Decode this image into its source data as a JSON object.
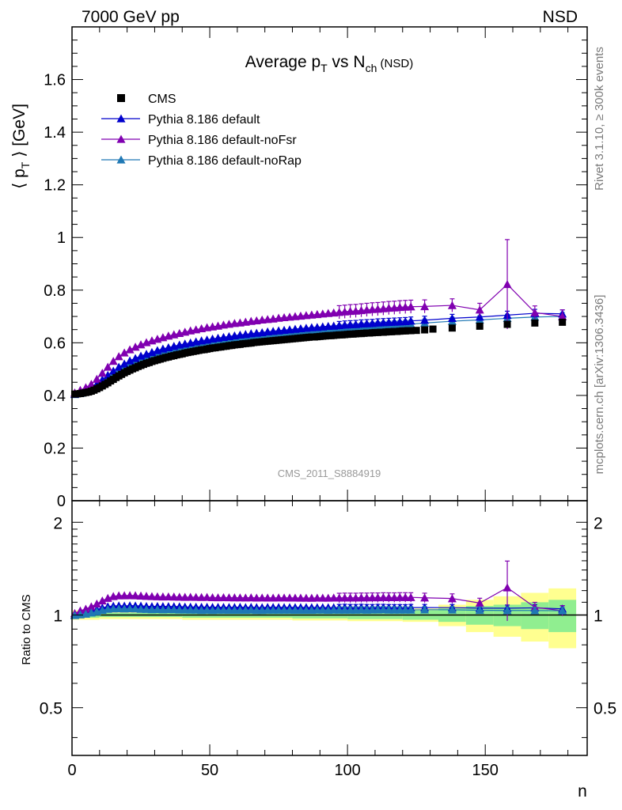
{
  "header": {
    "energy_label": "7000 GeV pp",
    "process_label": "NSD"
  },
  "side_text": {
    "rivet": "Rivet 3.1.10, ≥ 300k events",
    "mcplots": "mcplots.cern.ch [arXiv:1306.3436]"
  },
  "chart_data": [
    {
      "type": "scatter",
      "panel": "main",
      "title_parts": {
        "main": "Average p",
        "sub1": "T",
        "mid": " vs N",
        "sub2": "ch",
        "tail": " (NSD)"
      },
      "ylabel_parts": {
        "open": "⟨ p",
        "sub": "T",
        "close": " ⟩ [GeV]"
      },
      "watermark": "CMS_2011_S8884919",
      "xlim": [
        0,
        187
      ],
      "ylim": [
        0,
        1.8
      ],
      "yticks": [
        0,
        0.2,
        0.4,
        0.6,
        0.8,
        1.0,
        1.2,
        1.4,
        1.6
      ],
      "ytick_labels": [
        "0",
        "0.2",
        "0.4",
        "0.6",
        "0.8",
        "1",
        "1.2",
        "1.4",
        "1.6"
      ],
      "legend_position": "top-left",
      "series": [
        {
          "name": "CMS",
          "color": "#000000",
          "marker": "square",
          "x": [
            1,
            2,
            3,
            4,
            5,
            6,
            7,
            8,
            9,
            10,
            11,
            12,
            13,
            14,
            15,
            16,
            17,
            18,
            19,
            20,
            21,
            22,
            23,
            24,
            25,
            26,
            27,
            28,
            29,
            30,
            31,
            32,
            33,
            34,
            35,
            36,
            37,
            38,
            39,
            40,
            41,
            42,
            43,
            44,
            45,
            46,
            47,
            48,
            49,
            50,
            51,
            52,
            53,
            54,
            55,
            56,
            57,
            58,
            59,
            60,
            61,
            62,
            63,
            64,
            65,
            66,
            67,
            68,
            69,
            70,
            71,
            72,
            73,
            74,
            75,
            76,
            77,
            78,
            79,
            80,
            81,
            82,
            83,
            84,
            85,
            86,
            87,
            88,
            89,
            90,
            91,
            92,
            93,
            94,
            95,
            96,
            97,
            98,
            99,
            100,
            101,
            102,
            103,
            104,
            105,
            106,
            107,
            108,
            109,
            110,
            111,
            112,
            113,
            114,
            115,
            116,
            117,
            118,
            119,
            120,
            121,
            122,
            123,
            125,
            128,
            131,
            138,
            148,
            158,
            168,
            178
          ],
          "y": [
            0.405,
            0.406,
            0.407,
            0.409,
            0.411,
            0.413,
            0.416,
            0.42,
            0.425,
            0.43,
            0.436,
            0.442,
            0.448,
            0.455,
            0.461,
            0.468,
            0.474,
            0.48,
            0.486,
            0.491,
            0.496,
            0.501,
            0.505,
            0.51,
            0.514,
            0.518,
            0.522,
            0.525,
            0.529,
            0.532,
            0.535,
            0.538,
            0.541,
            0.544,
            0.546,
            0.549,
            0.551,
            0.554,
            0.556,
            0.558,
            0.561,
            0.563,
            0.565,
            0.567,
            0.569,
            0.571,
            0.573,
            0.574,
            0.576,
            0.578,
            0.58,
            0.581,
            0.583,
            0.584,
            0.586,
            0.587,
            0.589,
            0.59,
            0.592,
            0.593,
            0.594,
            0.596,
            0.597,
            0.598,
            0.599,
            0.601,
            0.602,
            0.603,
            0.604,
            0.605,
            0.606,
            0.607,
            0.608,
            0.609,
            0.61,
            0.611,
            0.612,
            0.613,
            0.614,
            0.615,
            0.616,
            0.617,
            0.618,
            0.619,
            0.62,
            0.621,
            0.622,
            0.622,
            0.623,
            0.624,
            0.625,
            0.626,
            0.627,
            0.627,
            0.628,
            0.629,
            0.63,
            0.63,
            0.631,
            0.632,
            0.633,
            0.633,
            0.634,
            0.635,
            0.635,
            0.636,
            0.637,
            0.637,
            0.638,
            0.639,
            0.639,
            0.64,
            0.64,
            0.641,
            0.642,
            0.642,
            0.643,
            0.643,
            0.644,
            0.645,
            0.645,
            0.646,
            0.646,
            0.647,
            0.649,
            0.652,
            0.656,
            0.663,
            0.67,
            0.675,
            0.678
          ]
        },
        {
          "name": "Pythia 8.186 default",
          "color": "#0000cc",
          "marker": "triangle",
          "x": [
            1,
            3,
            5,
            7,
            9,
            11,
            13,
            15,
            17,
            19,
            21,
            23,
            25,
            27,
            29,
            31,
            33,
            35,
            37,
            39,
            41,
            43,
            45,
            47,
            49,
            51,
            53,
            55,
            57,
            59,
            61,
            63,
            65,
            67,
            69,
            71,
            73,
            75,
            77,
            79,
            81,
            83,
            85,
            87,
            89,
            91,
            93,
            95,
            97,
            99,
            101,
            103,
            105,
            107,
            109,
            111,
            113,
            115,
            117,
            119,
            121,
            123,
            128,
            138,
            148,
            158,
            168,
            178
          ],
          "y": [
            0.405,
            0.41,
            0.418,
            0.428,
            0.443,
            0.46,
            0.477,
            0.493,
            0.508,
            0.52,
            0.532,
            0.541,
            0.55,
            0.557,
            0.564,
            0.571,
            0.577,
            0.582,
            0.587,
            0.592,
            0.596,
            0.6,
            0.604,
            0.608,
            0.611,
            0.615,
            0.618,
            0.621,
            0.624,
            0.627,
            0.63,
            0.632,
            0.635,
            0.637,
            0.639,
            0.642,
            0.644,
            0.646,
            0.648,
            0.65,
            0.652,
            0.654,
            0.656,
            0.658,
            0.659,
            0.661,
            0.663,
            0.664,
            0.666,
            0.668,
            0.669,
            0.67,
            0.672,
            0.673,
            0.674,
            0.676,
            0.677,
            0.678,
            0.679,
            0.68,
            0.681,
            0.683,
            0.686,
            0.693,
            0.698,
            0.705,
            0.712,
            0.71
          ]
        },
        {
          "name": "Pythia 8.186 default-noFsr",
          "color": "#8000b0",
          "marker": "triangle",
          "x": [
            1,
            3,
            5,
            7,
            9,
            11,
            13,
            15,
            17,
            19,
            21,
            23,
            25,
            27,
            29,
            31,
            33,
            35,
            37,
            39,
            41,
            43,
            45,
            47,
            49,
            51,
            53,
            55,
            57,
            59,
            61,
            63,
            65,
            67,
            69,
            71,
            73,
            75,
            77,
            79,
            81,
            83,
            85,
            87,
            89,
            91,
            93,
            95,
            97,
            99,
            101,
            103,
            105,
            107,
            109,
            111,
            113,
            115,
            117,
            119,
            121,
            123,
            128,
            138,
            148,
            158,
            168,
            178
          ],
          "y": [
            0.41,
            0.42,
            0.43,
            0.443,
            0.462,
            0.485,
            0.508,
            0.53,
            0.548,
            0.562,
            0.574,
            0.584,
            0.593,
            0.601,
            0.608,
            0.614,
            0.62,
            0.626,
            0.631,
            0.636,
            0.641,
            0.646,
            0.65,
            0.654,
            0.658,
            0.661,
            0.664,
            0.668,
            0.671,
            0.674,
            0.676,
            0.679,
            0.682,
            0.684,
            0.687,
            0.689,
            0.691,
            0.694,
            0.696,
            0.698,
            0.7,
            0.702,
            0.704,
            0.706,
            0.708,
            0.71,
            0.712,
            0.714,
            0.716,
            0.718,
            0.72,
            0.721,
            0.723,
            0.725,
            0.727,
            0.728,
            0.73,
            0.732,
            0.733,
            0.735,
            0.736,
            0.737,
            0.738,
            0.742,
            0.725,
            0.822,
            0.715,
            0.7
          ]
        },
        {
          "name": "Pythia 8.186 default-noRap",
          "color": "#1f78b4",
          "marker": "triangle",
          "x": [
            1,
            3,
            5,
            7,
            9,
            11,
            13,
            15,
            17,
            19,
            21,
            23,
            25,
            27,
            29,
            31,
            33,
            35,
            37,
            39,
            41,
            43,
            45,
            47,
            49,
            51,
            53,
            55,
            57,
            59,
            61,
            63,
            65,
            67,
            69,
            71,
            73,
            75,
            77,
            79,
            81,
            83,
            85,
            87,
            89,
            91,
            93,
            95,
            97,
            99,
            101,
            103,
            105,
            107,
            109,
            111,
            113,
            115,
            117,
            119,
            121,
            123,
            128,
            138,
            148,
            158,
            168,
            178
          ],
          "y": [
            0.404,
            0.408,
            0.414,
            0.423,
            0.436,
            0.452,
            0.468,
            0.483,
            0.497,
            0.509,
            0.52,
            0.529,
            0.537,
            0.545,
            0.551,
            0.558,
            0.563,
            0.569,
            0.574,
            0.578,
            0.583,
            0.587,
            0.591,
            0.594,
            0.598,
            0.601,
            0.605,
            0.608,
            0.611,
            0.614,
            0.616,
            0.619,
            0.622,
            0.624,
            0.626,
            0.629,
            0.631,
            0.633,
            0.635,
            0.637,
            0.639,
            0.641,
            0.643,
            0.645,
            0.647,
            0.649,
            0.65,
            0.652,
            0.654,
            0.655,
            0.657,
            0.658,
            0.66,
            0.661,
            0.663,
            0.664,
            0.666,
            0.667,
            0.668,
            0.669,
            0.67,
            0.671,
            0.675,
            0.682,
            0.687,
            0.693,
            0.698,
            0.7
          ]
        }
      ]
    },
    {
      "type": "scatter",
      "panel": "ratio",
      "ylabel": "Ratio to CMS",
      "xlabel": "n",
      "xlim": [
        0,
        187
      ],
      "ylim": [
        0.35,
        2.35
      ],
      "ylog": true,
      "xticks": [
        0,
        50,
        100,
        150
      ],
      "xtick_labels": [
        "0",
        "50",
        "100",
        "150"
      ],
      "yticks": [
        0.5,
        1,
        2
      ],
      "ytick_labels": [
        "0.5",
        "1",
        "2"
      ],
      "uncertainty_bands": {
        "x_edges": [
          0,
          10,
          40,
          80,
          100,
          120,
          133,
          143,
          153,
          163,
          173,
          183
        ],
        "inner_halfwidth": [
          0.02,
          0.015,
          0.02,
          0.025,
          0.03,
          0.035,
          0.05,
          0.07,
          0.08,
          0.1,
          0.12
        ],
        "outer_halfwidth": [
          0.035,
          0.03,
          0.035,
          0.04,
          0.045,
          0.05,
          0.08,
          0.12,
          0.15,
          0.18,
          0.22
        ],
        "inner_color": "#90ee90",
        "outer_color": "#ffff90"
      },
      "series": [
        {
          "name": "Pythia 8.186 default",
          "color": "#0000cc",
          "ratio_of": 1
        },
        {
          "name": "Pythia 8.186 default-noFsr",
          "color": "#8000b0",
          "ratio_of": 2
        },
        {
          "name": "Pythia 8.186 default-noRap",
          "color": "#1f78b4",
          "ratio_of": 3
        }
      ]
    }
  ]
}
